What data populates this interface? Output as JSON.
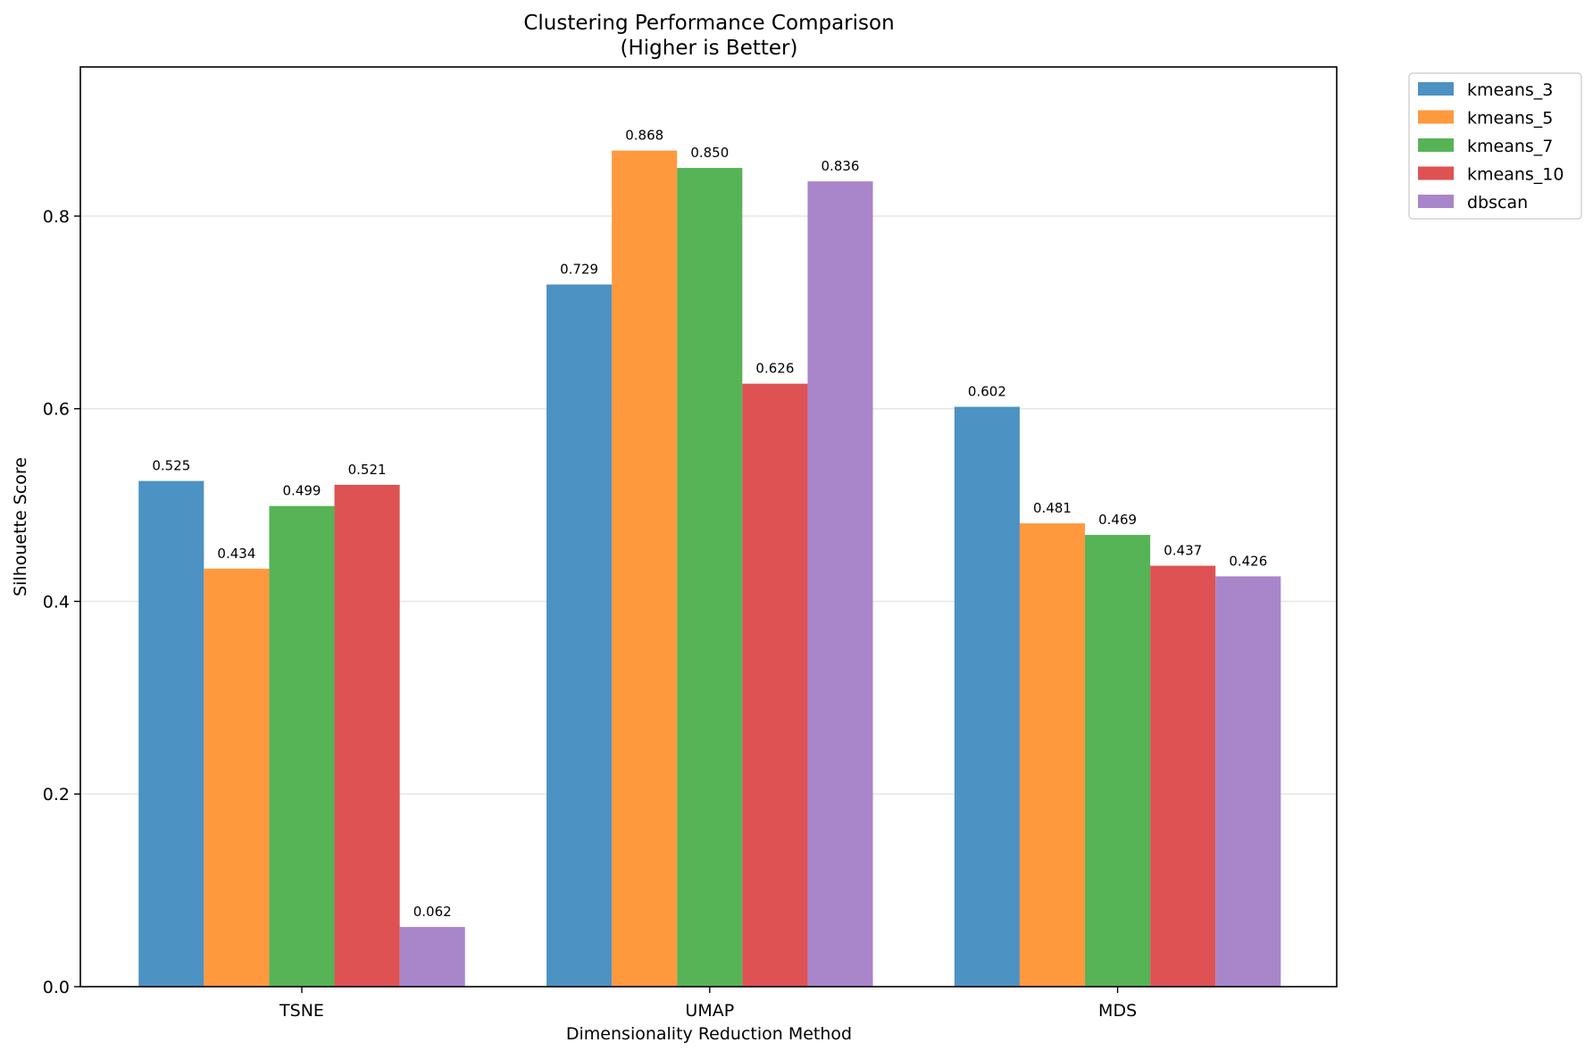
{
  "chart_data": {
    "type": "bar",
    "title_line1": "Clustering Performance Comparison",
    "title_line2": "(Higher is Better)",
    "xlabel": "Dimensionality Reduction Method",
    "ylabel": "Silhouette Score",
    "categories": [
      "TSNE",
      "UMAP",
      "MDS"
    ],
    "ylim": [
      0,
      0.9548
    ],
    "yticks": [
      0.0,
      0.2,
      0.4,
      0.6,
      0.8
    ],
    "ytick_labels": [
      "0.0",
      "0.2",
      "0.4",
      "0.6",
      "0.8"
    ],
    "grid": "horizontal",
    "legend_position": "outside top-right",
    "series": [
      {
        "name": "kmeans_3",
        "color": "#4c92c3",
        "values": [
          0.525,
          0.729,
          0.602
        ],
        "labels": [
          "0.525",
          "0.729",
          "0.602"
        ]
      },
      {
        "name": "kmeans_5",
        "color": "#ff993e",
        "values": [
          0.434,
          0.868,
          0.481
        ],
        "labels": [
          "0.434",
          "0.868",
          "0.481"
        ]
      },
      {
        "name": "kmeans_7",
        "color": "#56b356",
        "values": [
          0.499,
          0.85,
          0.469
        ],
        "labels": [
          "0.499",
          "0.850",
          "0.469"
        ]
      },
      {
        "name": "kmeans_10",
        "color": "#de5253",
        "values": [
          0.521,
          0.626,
          0.437
        ],
        "labels": [
          "0.521",
          "0.626",
          "0.437"
        ]
      },
      {
        "name": "dbscan",
        "color": "#a985ca",
        "values": [
          0.062,
          0.836,
          0.426
        ],
        "labels": [
          "0.062",
          "0.836",
          "0.426"
        ]
      }
    ]
  }
}
